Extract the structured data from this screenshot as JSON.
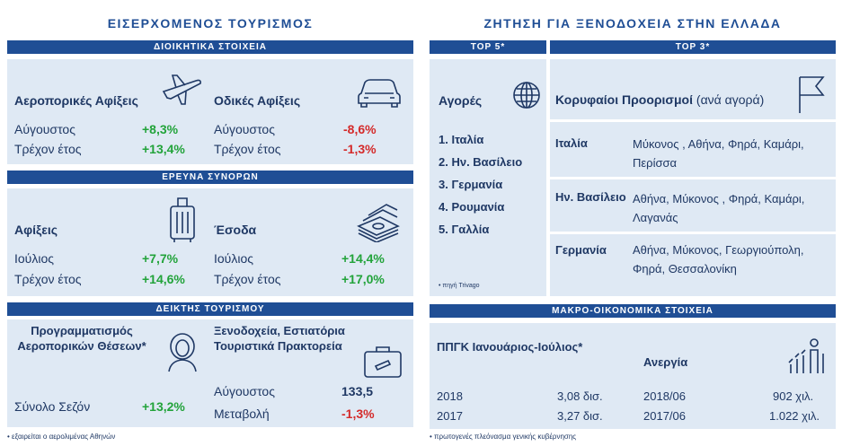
{
  "left": {
    "title": "ΕΙΣΕΡΧΟΜΕΝΟΣ ΤΟΥΡΙΣΜΟΣ",
    "admin": {
      "bar": "ΔΙΟΙΚΗΤΙΚΑ ΣΤΟΙΧΕΙΑ",
      "air": {
        "heading": "Αεροπορικές Αφίξεις",
        "rows": [
          {
            "label": "Αύγουστος",
            "value": "+8,3%"
          },
          {
            "label": "Τρέχον έτος",
            "value": "+13,4%"
          }
        ],
        "icon": "airplane-icon"
      },
      "road": {
        "heading": "Οδικές Αφίξεις",
        "rows": [
          {
            "label": "Αύγουστος",
            "value": "-8,6%"
          },
          {
            "label": "Τρέχον έτος",
            "value": "-1,3%"
          }
        ],
        "icon": "car-icon"
      }
    },
    "border": {
      "bar": "ΕΡΕΥΝΑ ΣΥΝΟΡΩΝ",
      "arrivals": {
        "heading": "Αφίξεις",
        "rows": [
          {
            "label": "Ιούλιος",
            "value": "+7,7%"
          },
          {
            "label": "Τρέχον έτος",
            "value": "+14,6%"
          }
        ],
        "icon": "luggage-icon"
      },
      "revenue": {
        "heading": "Έσοδα",
        "rows": [
          {
            "label": "Ιούλιος",
            "value": "+14,4%"
          },
          {
            "label": "Τρέχον έτος",
            "value": "+17,0%"
          }
        ],
        "icon": "money-icon"
      }
    },
    "indicator": {
      "bar": "ΔΕΙΚΤΗΣ ΤΟΥΡΙΣΜΟΥ",
      "seats": {
        "heading": "Προγραμματισμός Αεροπορικών Θέσεων*",
        "label": "Σύνολο Σεζόν",
        "value": "+13,2%",
        "icon": "stewardess-icon"
      },
      "hotels": {
        "heading": "Ξενοδοχεία, Εστιατόρια Τουριστικά Πρακτορεία",
        "rows": [
          {
            "label": "Αύγουστος",
            "value": "133,5"
          },
          {
            "label": "Μεταβολή",
            "value": "-1,3%"
          }
        ],
        "icon": "briefcase-icon"
      }
    },
    "footnote": "• εξαιρείται ο αερολιμένας Αθηνών"
  },
  "right": {
    "title": "ΖΗΤΗΣΗ ΓΙΑ ΞΕΝΟΔΟΧΕΙΑ ΣΤΗΝ ΕΛΛΑΔΑ",
    "top5_bar": "TOP 5*",
    "top3_bar": "TOP 3*",
    "markets": {
      "heading": "Αγορές",
      "items": [
        "1. Ιταλία",
        "2. Ην. Βασίλειο",
        "3. Γερμανία",
        "4. Ρουμανία",
        "5. Γαλλία"
      ],
      "source": "• πηγή Trivago",
      "icon": "globe-icon"
    },
    "destinations": {
      "heading": "Κορυφαίοι Προορισμοί",
      "heading_suffix": "(ανά αγορά)",
      "icon": "flag-icon",
      "rows": [
        {
          "country": "Ιταλία",
          "places": "Μύκονος , Αθήνα, Φηρά, Καμάρι, Περίσσα"
        },
        {
          "country": "Ην. Βασίλειο",
          "places": "Αθήνα, Μύκονος , Φηρά, Καμάρι, Λαγανάς"
        },
        {
          "country": "Γερμανία",
          "places": "Αθήνα, Μύκονος, Γεωργιούπολη, Φηρά, Θεσσαλονίκη"
        }
      ]
    },
    "macro": {
      "bar": "ΜΑΚΡΟ-ΟΙΚΟΝΟΜΙΚΑ ΣΤΟΙΧΕΙΑ",
      "ppgk": {
        "heading": "ΠΠΓΚ Ιανουάριος-Ιούλιος*",
        "rows": [
          {
            "label": "2018",
            "value": "3,08 δισ."
          },
          {
            "label": "2017",
            "value": "3,27 δισ."
          }
        ]
      },
      "unemployment": {
        "heading": "Ανεργία",
        "icon": "people-chart-icon",
        "rows": [
          {
            "label": "2018/06",
            "value": "902 χιλ."
          },
          {
            "label": "2017/06",
            "value": "1.022 χιλ."
          }
        ]
      },
      "footnote": "• πρωτογενές πλεόνασμα γενικής κυβέρνησης"
    }
  }
}
